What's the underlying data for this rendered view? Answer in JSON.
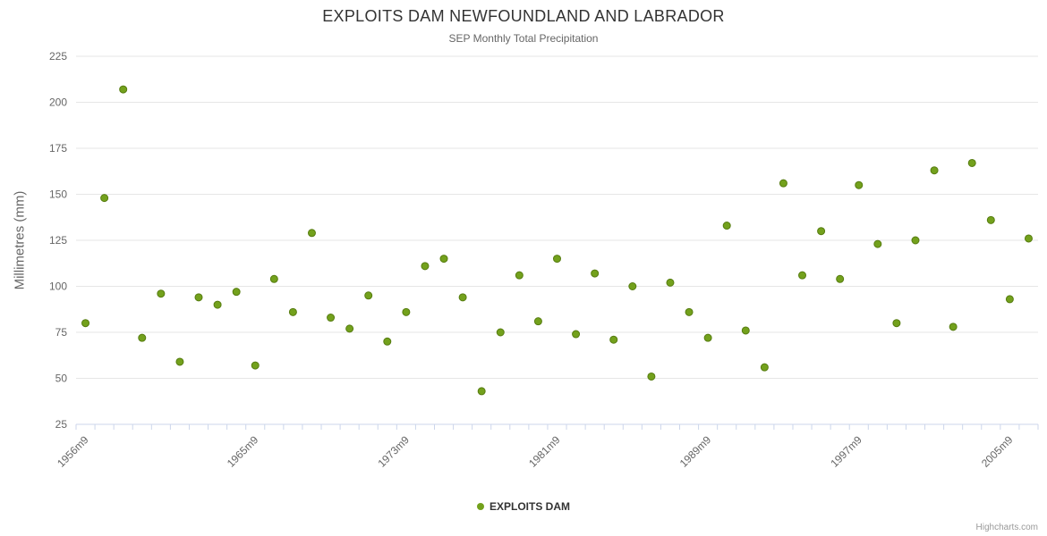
{
  "header": {
    "title": "EXPLOITS DAM NEWFOUNDLAND AND LABRADOR",
    "subtitle": "SEP Monthly Total Precipitation"
  },
  "legend": {
    "label": "EXPLOITS DAM"
  },
  "credits": {
    "label": "Highcharts.com"
  },
  "colors": {
    "point_fill": "#73a11c",
    "point_stroke": "#567c10",
    "grid": "#e6e6e6",
    "axis": "#ccd6eb",
    "tick_text": "#666666",
    "title_text": "#333333",
    "subtitle_text": "#666666",
    "credit_text": "#999999"
  },
  "chart_data": {
    "type": "scatter",
    "title": "EXPLOITS DAM NEWFOUNDLAND AND LABRADOR",
    "subtitle": "SEP Monthly Total Precipitation",
    "xlabel": "",
    "ylabel": "Millimetres (mm)",
    "ylim": [
      25,
      225
    ],
    "ytick_step": 25,
    "grid": true,
    "legend_position": "bottom",
    "xticks": [
      {
        "index": 0,
        "label": "1956m9"
      },
      {
        "index": 9,
        "label": "1965m9"
      },
      {
        "index": 17,
        "label": "1973m9"
      },
      {
        "index": 25,
        "label": "1981m9"
      },
      {
        "index": 33,
        "label": "1989m9"
      },
      {
        "index": 41,
        "label": "1997m9"
      },
      {
        "index": 49,
        "label": "2005m9"
      }
    ],
    "series": [
      {
        "name": "EXPLOITS DAM",
        "x": [
          "1956m9",
          "1957m9",
          "1958m9",
          "1959m9",
          "1960m9",
          "1961m9",
          "1962m9",
          "1963m9",
          "1964m9",
          "1965m9",
          "1966m9",
          "1967m9",
          "1968m9",
          "1969m9",
          "1970m9",
          "1971m9",
          "1972m9",
          "1973m9",
          "1974m9",
          "1975m9",
          "1976m9",
          "1977m9",
          "1978m9",
          "1979m9",
          "1980m9",
          "1981m9",
          "1982m9",
          "1983m9",
          "1984m9",
          "1985m9",
          "1986m9",
          "1987m9",
          "1988m9",
          "1989m9",
          "1990m9",
          "1991m9",
          "1992m9",
          "1993m9",
          "1994m9",
          "1995m9",
          "1996m9",
          "1997m9",
          "1998m9",
          "1999m9",
          "2000m9",
          "2001m9",
          "2002m9",
          "2003m9",
          "2004m9",
          "2005m9",
          "2006m9"
        ],
        "values": [
          80,
          148,
          207,
          72,
          96,
          59,
          94,
          90,
          97,
          57,
          104,
          86,
          129,
          83,
          77,
          95,
          70,
          86,
          111,
          115,
          94,
          43,
          75,
          106,
          81,
          115,
          74,
          107,
          71,
          100,
          51,
          102,
          86,
          72,
          133,
          76,
          56,
          156,
          106,
          130,
          104,
          155,
          123,
          80,
          125,
          163,
          78,
          167,
          136,
          93,
          126
        ]
      }
    ]
  }
}
